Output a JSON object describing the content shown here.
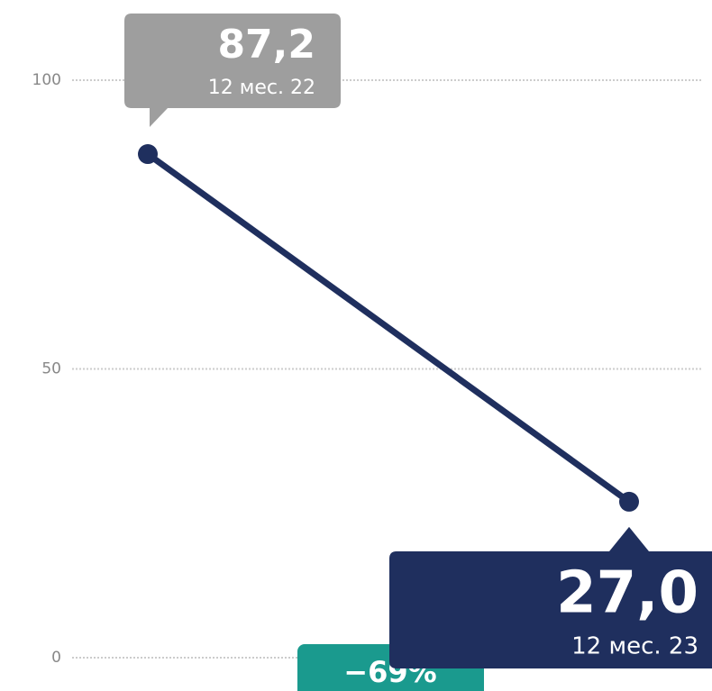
{
  "chart_data": {
    "type": "line",
    "categories": [
      "12 мес. 22",
      "12 мес. 23"
    ],
    "values": [
      87.2,
      27.0
    ],
    "value_labels": [
      "87,2",
      "27,0"
    ],
    "color": "#1f2f5e",
    "label_colors": [
      "#9e9e9e",
      "#1f2f5e"
    ],
    "annotation": "−69%",
    "annotation_color": "#1a9a8e",
    "ylim": [
      0,
      100
    ],
    "yticks": [
      0,
      50,
      100
    ],
    "grid": true
  }
}
